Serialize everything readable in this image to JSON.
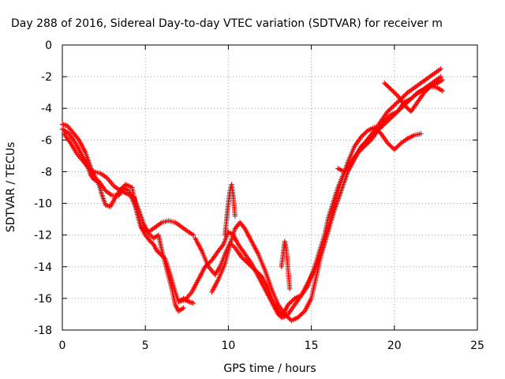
{
  "chart_data": {
    "type": "scatter",
    "title": "Day 288 of 2016, Sidereal Day-to-day VTEC variation (SDTVAR) for receiver m",
    "xlabel": "GPS time / hours",
    "ylabel": "SDTVAR / TECUs",
    "xlim": [
      0,
      25
    ],
    "ylim": [
      -18,
      0
    ],
    "xticks": [
      "0",
      "5",
      "10",
      "15",
      "20",
      "25"
    ],
    "yticks": [
      "0",
      "-2",
      "-4",
      "-6",
      "-8",
      "-10",
      "-12",
      "-14",
      "-16",
      "-18"
    ],
    "grid": true,
    "marker": "+",
    "color": "#ff0000",
    "series": [
      {
        "x": [
          0.0,
          0.3,
          0.7,
          1.0,
          1.4,
          1.8,
          2.2,
          2.4,
          2.6,
          2.9,
          3.2,
          3.6,
          4.0,
          4.4,
          4.7,
          5.0,
          5.3,
          5.5,
          5.7,
          5.9,
          6.2,
          6.5,
          6.8,
          7.0,
          7.3,
          7.6,
          7.9
        ],
        "y": [
          -5.0,
          -5.1,
          -5.6,
          -6.0,
          -6.8,
          -8.0,
          -8.8,
          -9.5,
          -10.1,
          -10.2,
          -9.6,
          -9.0,
          -9.2,
          -10.2,
          -11.4,
          -12.0,
          -12.4,
          -12.6,
          -13.0,
          -13.2,
          -13.5,
          -14.5,
          -15.6,
          -16.2,
          -16.0,
          -16.2,
          -16.3
        ]
      },
      {
        "x": [
          0.0,
          0.4,
          0.8,
          1.2,
          1.5,
          1.7,
          1.9,
          2.2,
          2.6,
          3.0,
          3.4,
          3.8,
          4.2,
          4.5,
          4.8,
          5.2,
          5.6,
          6.0,
          6.4,
          6.8,
          7.2,
          7.6,
          7.9
        ],
        "y": [
          -5.3,
          -5.6,
          -6.2,
          -7.0,
          -7.6,
          -8.2,
          -8.5,
          -8.6,
          -9.2,
          -9.5,
          -9.5,
          -8.8,
          -9.0,
          -10.5,
          -11.6,
          -11.8,
          -11.5,
          -11.2,
          -11.1,
          -11.2,
          -11.5,
          -11.8,
          -12.0
        ]
      },
      {
        "x": [
          0.1,
          0.5,
          0.9,
          1.3,
          1.6,
          1.9,
          2.3,
          2.7,
          3.1,
          3.5,
          3.9,
          4.3,
          4.6,
          4.9,
          5.2,
          5.5,
          5.8,
          6.0,
          6.3,
          6.6,
          6.8,
          7.0,
          7.3
        ],
        "y": [
          -5.6,
          -6.2,
          -6.9,
          -7.4,
          -7.8,
          -8.0,
          -8.1,
          -8.4,
          -8.9,
          -9.2,
          -9.4,
          -9.6,
          -10.4,
          -11.3,
          -11.9,
          -12.2,
          -12.0,
          -13.0,
          -14.2,
          -15.4,
          -16.4,
          -16.8,
          -16.6
        ]
      },
      {
        "x": [
          7.0,
          7.4,
          7.8,
          8.2,
          8.6,
          9.0,
          9.4,
          9.7,
          10.0,
          10.3,
          10.6,
          11.0,
          11.4,
          11.8,
          12.2,
          12.5,
          12.8,
          13.0,
          13.2,
          13.4,
          13.6,
          14.0,
          14.4,
          14.8,
          15.0,
          15.2,
          15.5,
          15.8,
          16.0,
          16.3,
          16.6,
          17.0,
          17.4,
          17.8,
          18.2,
          18.5,
          18.8,
          19.2,
          19.6,
          20.0,
          20.4,
          20.8,
          21.2,
          21.6,
          22.0,
          22.4,
          22.8
        ],
        "y": [
          -16.2,
          -16.1,
          -15.6,
          -14.8,
          -14.0,
          -13.6,
          -13.0,
          -12.6,
          -11.8,
          -12.0,
          -12.6,
          -13.2,
          -13.8,
          -14.6,
          -15.4,
          -16.0,
          -16.6,
          -17.0,
          -17.2,
          -16.8,
          -16.4,
          -16.0,
          -15.8,
          -15.2,
          -14.6,
          -14.0,
          -13.0,
          -12.0,
          -11.0,
          -10.0,
          -9.0,
          -8.0,
          -7.4,
          -6.8,
          -6.2,
          -5.8,
          -5.4,
          -4.8,
          -4.2,
          -3.8,
          -3.4,
          -3.0,
          -2.7,
          -2.4,
          -2.1,
          -1.8,
          -1.5
        ]
      },
      {
        "x": [
          8.0,
          8.4,
          8.8,
          9.2,
          9.5,
          9.8,
          10.1,
          10.4,
          10.8,
          11.2,
          11.6,
          12.0,
          12.4,
          12.7,
          13.0,
          13.3,
          13.6,
          14.0,
          14.4,
          14.8,
          15.2,
          15.6,
          16.0,
          16.4,
          16.8,
          17.2,
          17.6,
          18.0,
          18.4,
          18.8,
          19.2,
          19.6,
          20.0,
          20.4,
          20.8,
          21.2,
          21.6,
          22.0,
          22.4,
          22.8
        ],
        "y": [
          -12.2,
          -13.0,
          -14.0,
          -14.5,
          -14.0,
          -13.2,
          -12.5,
          -12.8,
          -13.4,
          -13.8,
          -14.2,
          -14.6,
          -15.4,
          -16.2,
          -16.8,
          -17.2,
          -17.0,
          -16.4,
          -15.8,
          -15.0,
          -14.2,
          -13.2,
          -11.8,
          -10.4,
          -9.2,
          -8.0,
          -7.2,
          -6.4,
          -6.0,
          -5.6,
          -5.2,
          -4.8,
          -4.4,
          -4.0,
          -3.6,
          -3.2,
          -2.9,
          -2.6,
          -2.3,
          -2.0
        ]
      },
      {
        "x": [
          9.0,
          9.4,
          9.8,
          10.1,
          10.4,
          10.7,
          11.0,
          11.4,
          11.8,
          12.2,
          12.6,
          13.0,
          13.4,
          13.8,
          14.2,
          14.6,
          15.0,
          15.3,
          15.6,
          16.0,
          16.4,
          16.8,
          17.2,
          17.6,
          18.0,
          18.4,
          18.8,
          19.2,
          19.6,
          20.0,
          20.4,
          20.8,
          21.2,
          21.6
        ],
        "y": [
          -15.6,
          -14.8,
          -13.8,
          -12.6,
          -11.6,
          -11.2,
          -11.6,
          -12.4,
          -13.2,
          -14.2,
          -15.4,
          -16.4,
          -17.0,
          -17.4,
          -17.2,
          -16.8,
          -16.0,
          -14.6,
          -13.2,
          -11.6,
          -10.0,
          -8.6,
          -7.4,
          -6.4,
          -5.8,
          -5.4,
          -5.2,
          -5.6,
          -6.2,
          -6.6,
          -6.2,
          -5.9,
          -5.7,
          -5.6
        ]
      },
      {
        "x": [
          9.8,
          9.9,
          10.0,
          10.1,
          10.2,
          10.3,
          10.4
        ],
        "y": [
          -12.0,
          -11.0,
          -10.0,
          -9.2,
          -8.8,
          -9.6,
          -10.8
        ]
      },
      {
        "x": [
          13.2,
          13.3,
          13.4,
          13.5,
          13.6,
          13.7
        ],
        "y": [
          -14.0,
          -13.2,
          -12.4,
          -13.0,
          -14.2,
          -15.4
        ]
      },
      {
        "x": [
          19.4,
          19.8,
          20.2,
          20.6,
          21.0,
          21.4,
          21.8,
          22.2,
          22.6,
          22.9
        ],
        "y": [
          -2.4,
          -2.8,
          -3.2,
          -3.8,
          -4.2,
          -3.6,
          -3.0,
          -2.6,
          -2.4,
          -2.2
        ]
      },
      {
        "x": [
          16.6,
          17.0,
          17.4,
          17.8,
          18.2,
          18.6,
          19.0,
          19.4,
          19.8,
          20.2,
          20.6,
          21.0,
          21.4,
          21.8,
          22.2,
          22.6,
          22.9
        ],
        "y": [
          -7.8,
          -8.0,
          -7.4,
          -6.8,
          -6.4,
          -6.0,
          -5.4,
          -4.8,
          -4.4,
          -4.2,
          -3.6,
          -3.4,
          -3.0,
          -2.8,
          -2.6,
          -2.7,
          -2.9
        ]
      }
    ]
  }
}
